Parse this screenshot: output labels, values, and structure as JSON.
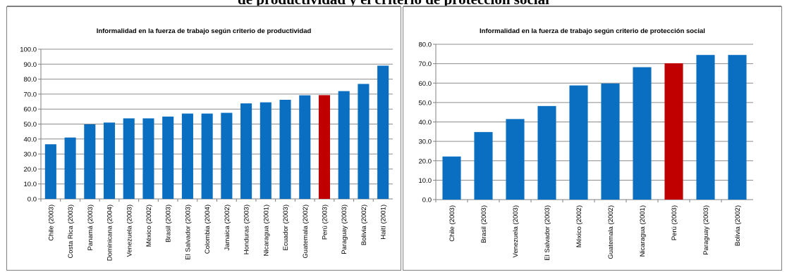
{
  "page": {
    "heading": "de productividad y el criterio de protección social"
  },
  "colors": {
    "bar": "#0b6fc1",
    "highlight": "#c00000",
    "grid": "#8c8c8c",
    "axis": "#7f7f7f"
  },
  "chart_data": [
    {
      "type": "bar",
      "title": "Informalidad en la fuerza de trabajo según  criterio de productividad",
      "xlabel": "",
      "ylabel": "",
      "ylim": [
        0,
        100
      ],
      "yticks": [
        "0.0",
        "10.0",
        "20.0",
        "30.0",
        "40.0",
        "50.0",
        "60.0",
        "70.0",
        "80.0",
        "90.0",
        "100.0"
      ],
      "grid": true,
      "legend": "none",
      "highlight_category": "Perú (2003)",
      "categories": [
        "Chile (2003)",
        "Costa Rica (2003)",
        "Panamá (2003)",
        "Dominicana (2004)",
        "Venezuela (2003)",
        "México (2002)",
        "Brasil (2003)",
        "El Salvador (2003)",
        "Colombia (2004)",
        "Jamaica (2002)",
        "Honduras (2003)",
        "Nicaragua (2001)",
        "Ecuador (2003)",
        "Guatemala (2002)",
        "Perú (2003)",
        "Paraguay (2003)",
        "Bolivia (2002)",
        "Haití (2001)"
      ],
      "values": [
        36.5,
        41.0,
        49.8,
        51.0,
        53.8,
        53.8,
        55.0,
        57.0,
        57.0,
        57.5,
        63.8,
        64.5,
        66.2,
        69.2,
        69.3,
        72.0,
        76.8,
        89.0
      ]
    },
    {
      "type": "bar",
      "title": "Informalidad en la fuerza de trabajo según  criterio de protección social",
      "xlabel": "",
      "ylabel": "",
      "ylim": [
        0,
        80
      ],
      "yticks": [
        "0.0",
        "10.0",
        "20.0",
        "30.0",
        "40.0",
        "50.0",
        "60.0",
        "70.0",
        "80.0"
      ],
      "grid": true,
      "legend": "none",
      "highlight_category": "Perú (2003)",
      "categories": [
        "Chile (2003)",
        "Brasil (2003)",
        "Venezuela (2003)",
        "El Salvador (2003)",
        "México (2002)",
        "Guatemala (2002)",
        "Nicaragua (2001)",
        "Perú (2003)",
        "Paraguay (2003)",
        "Bolivia (2002)"
      ],
      "values": [
        22.2,
        34.8,
        41.5,
        48.2,
        58.8,
        59.8,
        68.2,
        70.2,
        74.5,
        74.5
      ]
    }
  ]
}
